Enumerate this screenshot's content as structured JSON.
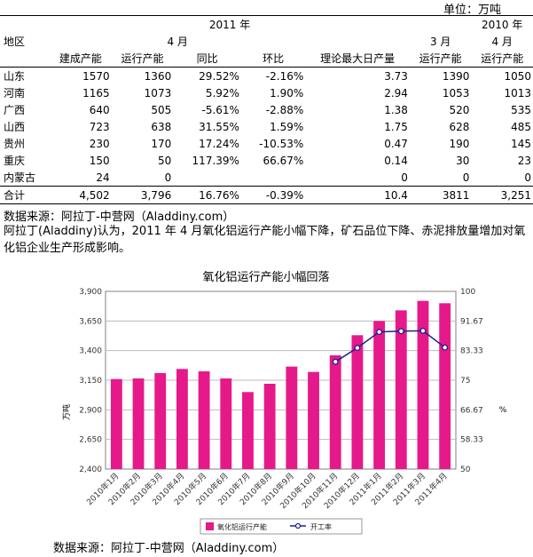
{
  "unit_label": "单位：万吨",
  "table": {
    "header_year_2011": "2011 年",
    "header_year_2010": "2010 年",
    "header_april": "4 月",
    "header_march": "3 月",
    "header_april_2010": "4 月",
    "header_region": "地区",
    "columns": [
      "建成产能",
      "运行产能",
      "同比",
      "环比",
      "理论最大日产量",
      "运行产能",
      "运行产能"
    ],
    "rows": [
      {
        "region": "山东",
        "cells": [
          "1570",
          "1360",
          "29.52%",
          "-2.16%",
          "3.73",
          "1390",
          "1050"
        ]
      },
      {
        "region": "河南",
        "cells": [
          "1165",
          "1073",
          "5.92%",
          "1.90%",
          "2.94",
          "1053",
          "1013"
        ]
      },
      {
        "region": "广西",
        "cells": [
          "640",
          "505",
          "-5.61%",
          "-2.88%",
          "1.38",
          "520",
          "535"
        ]
      },
      {
        "region": "山西",
        "cells": [
          "723",
          "638",
          "31.55%",
          "1.59%",
          "1.75",
          "628",
          "485"
        ]
      },
      {
        "region": "贵州",
        "cells": [
          "230",
          "170",
          "17.24%",
          "-10.53%",
          "0.47",
          "190",
          "145"
        ]
      },
      {
        "region": "重庆",
        "cells": [
          "150",
          "50",
          "117.39%",
          "66.67%",
          "0.14",
          "30",
          "23"
        ]
      },
      {
        "region": "内蒙古",
        "cells": [
          "24",
          "0",
          "",
          "",
          "0",
          "0",
          "0"
        ]
      }
    ],
    "total": {
      "region": "合计",
      "cells": [
        "4,502",
        "3,796",
        "16.76%",
        "-0.39%",
        "10.4",
        "3811",
        "3,251"
      ]
    }
  },
  "source_1": "数据来源：阿拉丁-中营网（Aladdiny.com）",
  "paragraph": "阿拉丁(Aladdiny)认为，2011 年 4 月氧化铝运行产能小幅下降，矿石品位下降、赤泥排放量增加对氧化铝企业生产形成影响。",
  "chart_data": {
    "type": "bar",
    "title": "氧化铝运行产能小幅回落",
    "ylabel": "万吨",
    "y2label": "%",
    "categories": [
      "2010年1月",
      "2010年2月",
      "2010年3月",
      "2010年4月",
      "2010年5月",
      "2010年6月",
      "2010年7月",
      "2010年8月",
      "2010年9月",
      "2010年10月",
      "2010年11月",
      "2010年12月",
      "2011年1月",
      "2011年2月",
      "2011年3月",
      "2011年4月"
    ],
    "series": [
      {
        "name": "氧化铝运行产能",
        "axis": "left",
        "kind": "bar",
        "color": "#e6198a",
        "values": [
          3160,
          3165,
          3210,
          3245,
          3225,
          3165,
          3050,
          3120,
          3265,
          3220,
          3360,
          3530,
          3650,
          3740,
          3820,
          3800
        ]
      },
      {
        "name": "开工率",
        "axis": "right",
        "kind": "line",
        "color": "#1f1f8f",
        "values": [
          null,
          null,
          null,
          null,
          null,
          null,
          null,
          null,
          null,
          null,
          80.2,
          84.1,
          88.6,
          88.8,
          88.9,
          84.2
        ]
      }
    ],
    "ylim": [
      2400,
      3900
    ],
    "yticks": [
      "2,400",
      "2,650",
      "2,900",
      "3,150",
      "3,400",
      "3,650",
      "3,900"
    ],
    "y2lim": [
      50,
      100
    ],
    "y2ticks": [
      "50",
      "58.33",
      "66.67",
      "75",
      "83.33",
      "91.67",
      "100"
    ],
    "grid": true,
    "legend_position": "bottom"
  },
  "source_2": "数据来源：阿拉丁-中营网（Aladdiny.com）",
  "colors": {
    "bar": "#e6198a",
    "line": "#1f1f8f",
    "grid": "#bdbdbd"
  }
}
